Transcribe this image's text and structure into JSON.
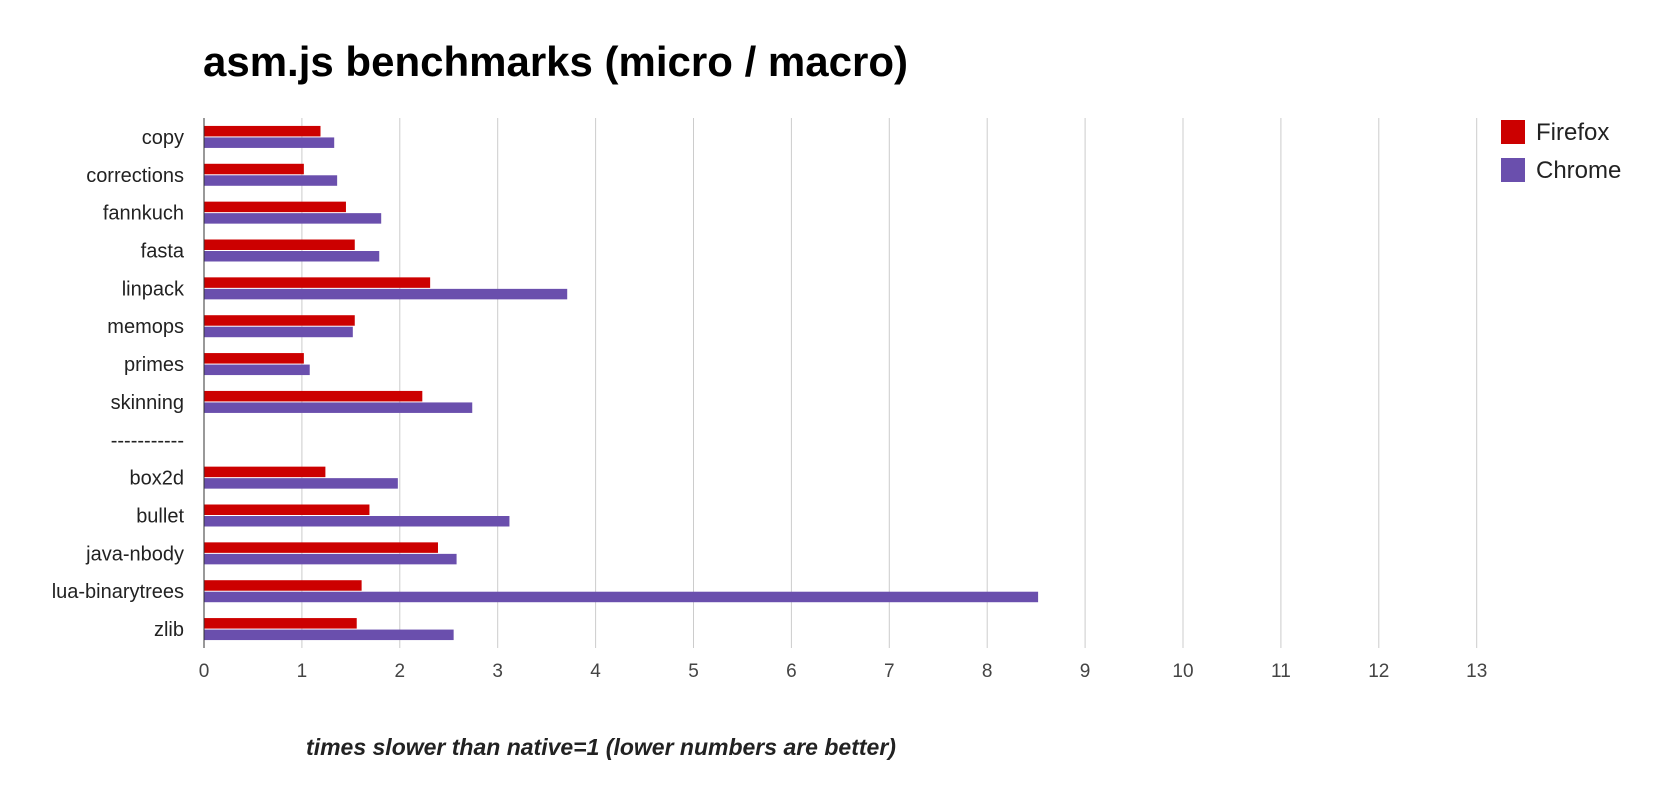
{
  "chart_data": {
    "type": "bar",
    "orientation": "horizontal",
    "title": "asm.js benchmarks (micro / macro)",
    "xlabel": "times slower than native=1 (lower numbers are better)",
    "ylabel": "",
    "xlim": [
      0,
      13
    ],
    "xticks": [
      "0",
      "1",
      "2",
      "3",
      "4",
      "5",
      "6",
      "7",
      "8",
      "9",
      "10",
      "11",
      "12",
      "13"
    ],
    "grid": true,
    "legend_position": "top-right",
    "categories": [
      "copy",
      "corrections",
      "fannkuch",
      "fasta",
      "linpack",
      "memops",
      "primes",
      "skinning",
      "-----------",
      "box2d",
      "bullet",
      "java-nbody",
      "lua-binarytrees",
      "zlib"
    ],
    "series": [
      {
        "name": "Firefox",
        "color": "#cc0000",
        "values": [
          1.19,
          1.02,
          1.45,
          1.54,
          2.31,
          1.54,
          1.02,
          2.23,
          null,
          1.24,
          1.69,
          2.39,
          1.61,
          1.56
        ]
      },
      {
        "name": "Chrome",
        "color": "#6a4fad",
        "values": [
          1.33,
          1.36,
          1.81,
          1.79,
          3.71,
          1.52,
          1.08,
          2.74,
          null,
          1.98,
          3.12,
          2.58,
          8.52,
          2.55
        ]
      }
    ]
  }
}
